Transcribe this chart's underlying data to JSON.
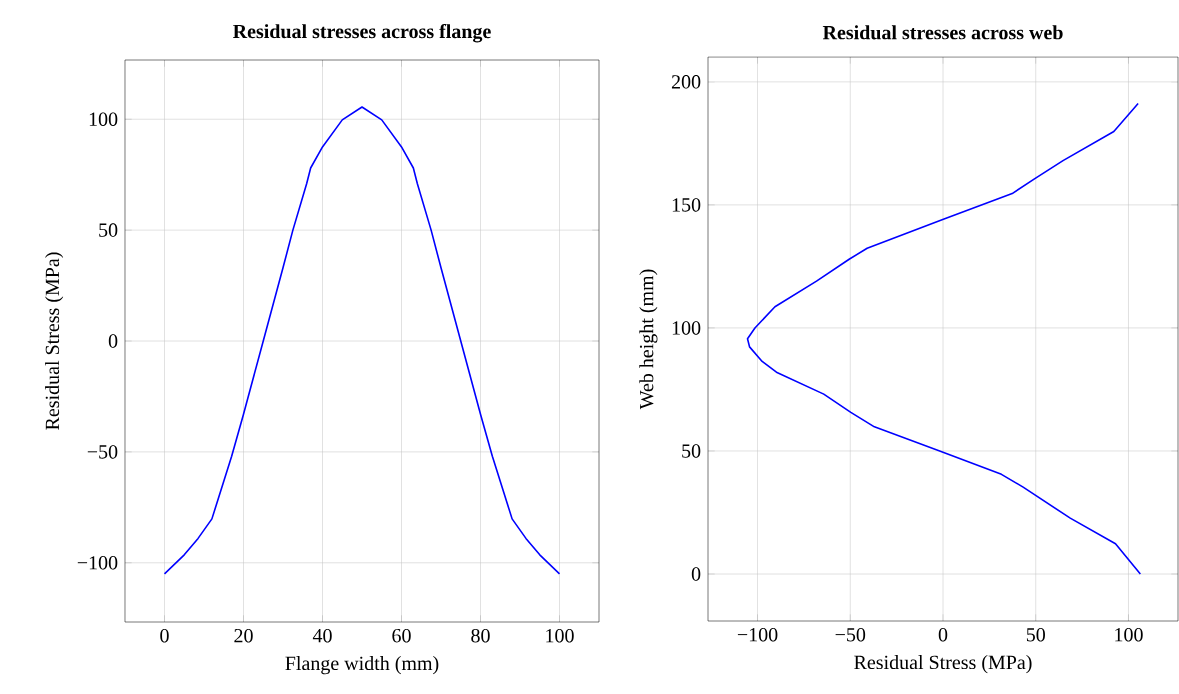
{
  "chart_data": [
    {
      "type": "line",
      "title": "Residual stresses across flange",
      "xlabel": "Flange width (mm)",
      "ylabel": "Residual Stress (MPa)",
      "grid": true,
      "xlim": [
        -10,
        110
      ],
      "ylim": [
        -126.7,
        126.7
      ],
      "xticks": [
        0,
        20,
        40,
        60,
        80,
        100
      ],
      "yticks": [
        {
          "value": -100,
          "label": "−100"
        },
        {
          "value": -50,
          "label": "−50"
        },
        0,
        50,
        100
      ],
      "series": [
        {
          "color": "#0000ff",
          "x": [
            0,
            5,
            8.5,
            12,
            17,
            20,
            25,
            30,
            32.5,
            36,
            37,
            40,
            45,
            50,
            55,
            60,
            63,
            64,
            67.5,
            70,
            75,
            80,
            83,
            88,
            91.5,
            95,
            100
          ],
          "values": [
            -105,
            -96.4,
            -89,
            -80.2,
            -52,
            -33,
            0,
            33,
            50,
            71,
            78,
            87.5,
            99.7,
            105.5,
            99.7,
            87.5,
            78,
            71,
            50,
            33,
            0,
            -33,
            -52,
            -80.2,
            -89,
            -96.4,
            -105
          ]
        }
      ]
    },
    {
      "type": "line",
      "title": "Residual stresses across web",
      "xlabel": "Residual Stress (MPa)",
      "ylabel": "Web height (mm)",
      "grid": true,
      "xlim": [
        -126.7,
        126.7
      ],
      "ylim": [
        -19.1,
        210.1
      ],
      "xticks": [
        {
          "value": -100,
          "label": "−100"
        },
        {
          "value": -50,
          "label": "−50"
        },
        0,
        50,
        100
      ],
      "yticks": [
        0,
        50,
        100,
        150,
        200
      ],
      "series": [
        {
          "color": "#0000ff",
          "x": [
            106.4,
            93,
            68.6,
            43.2,
            31.5,
            -1.8,
            -37,
            -49.7,
            -64.3,
            -89.8,
            -97.5,
            -104.3,
            -105.4,
            -101.4,
            -90.6,
            -68.2,
            -50.6,
            -40.9,
            0.2,
            37.3,
            49.1,
            64.7,
            92.1,
            105.2
          ],
          "values": [
            0,
            12.3,
            22.7,
            35.3,
            40.5,
            50,
            59.8,
            65.7,
            73.1,
            82,
            86.4,
            92.3,
            95.6,
            100,
            108.6,
            119,
            127.9,
            132.4,
            144.2,
            154.6,
            160.5,
            168,
            179.8,
            191.2
          ]
        }
      ]
    }
  ]
}
